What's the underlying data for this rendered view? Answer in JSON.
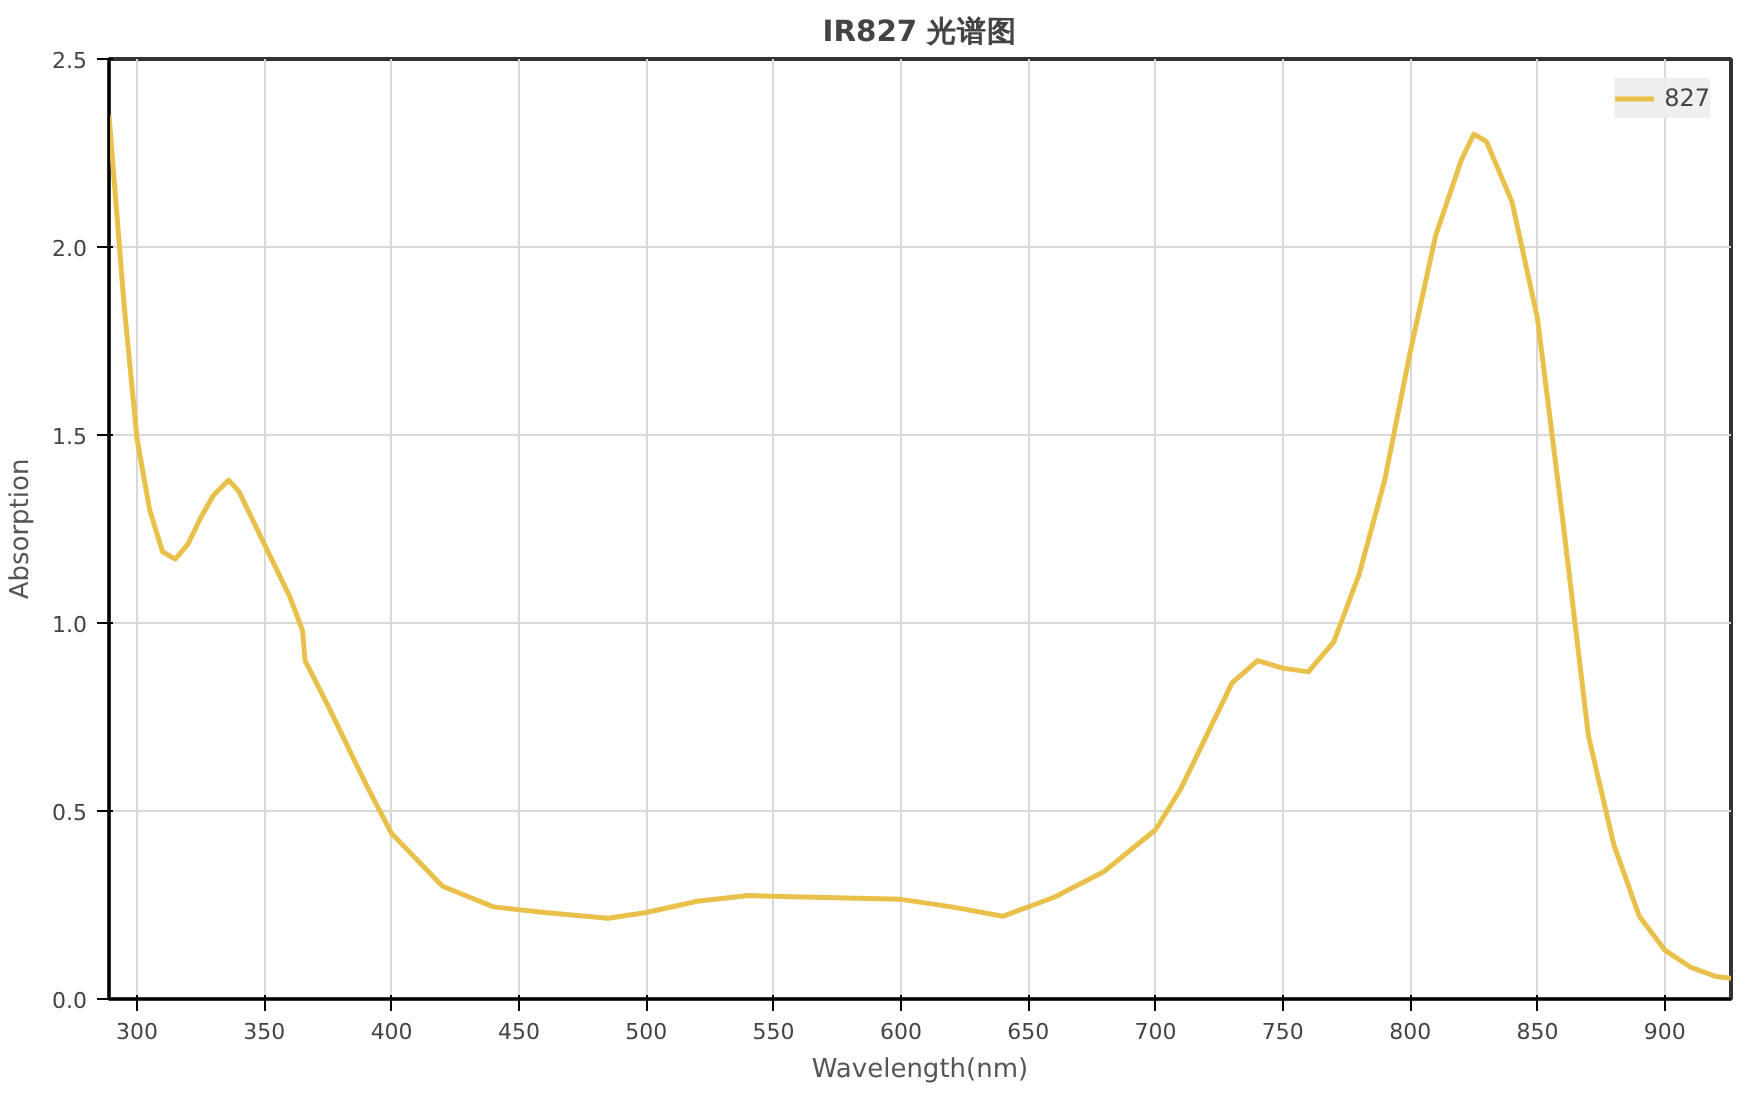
{
  "chart_data": {
    "type": "line",
    "title": "IR827 光谱图",
    "xlabel": "Wavelength(nm)",
    "ylabel": "Absorption",
    "x": [
      289,
      295,
      300,
      305,
      310,
      315,
      320,
      325,
      330,
      336,
      340,
      350,
      360,
      365,
      366,
      375,
      390,
      400,
      420,
      440,
      460,
      485,
      500,
      520,
      540,
      570,
      600,
      620,
      640,
      660,
      680,
      700,
      710,
      720,
      730,
      740,
      750,
      760,
      770,
      780,
      790,
      800,
      810,
      820,
      825,
      830,
      840,
      850,
      860,
      870,
      880,
      890,
      900,
      910,
      920,
      926
    ],
    "series": [
      {
        "name": "827",
        "color": "#e8c04a",
        "values": [
          2.35,
          1.84,
          1.49,
          1.3,
          1.19,
          1.17,
          1.21,
          1.28,
          1.34,
          1.38,
          1.35,
          1.21,
          1.07,
          0.98,
          0.9,
          0.78,
          0.57,
          0.44,
          0.3,
          0.245,
          0.23,
          0.215,
          0.23,
          0.26,
          0.275,
          0.27,
          0.265,
          0.245,
          0.22,
          0.27,
          0.34,
          0.45,
          0.56,
          0.7,
          0.84,
          0.9,
          0.88,
          0.87,
          0.95,
          1.13,
          1.38,
          1.72,
          2.03,
          2.23,
          2.3,
          2.28,
          2.12,
          1.81,
          1.27,
          0.7,
          0.41,
          0.22,
          0.13,
          0.085,
          0.06,
          0.055
        ]
      }
    ],
    "xlim": [
      289,
      926
    ],
    "ylim": [
      0,
      2.5
    ],
    "xticks": [
      300,
      350,
      400,
      450,
      500,
      550,
      600,
      650,
      700,
      750,
      800,
      850,
      900
    ],
    "yticks": [
      {
        "value": 0,
        "label": "0.0"
      },
      {
        "value": 0.5,
        "label": "0.5"
      },
      {
        "value": 1,
        "label": "1.0"
      },
      {
        "value": 1.5,
        "label": "1.5"
      },
      {
        "value": 2,
        "label": "2.0"
      },
      {
        "value": 2.5,
        "label": "2.5"
      }
    ],
    "grid": true,
    "legend": "top right",
    "marker": "none",
    "line_style": "solid"
  }
}
